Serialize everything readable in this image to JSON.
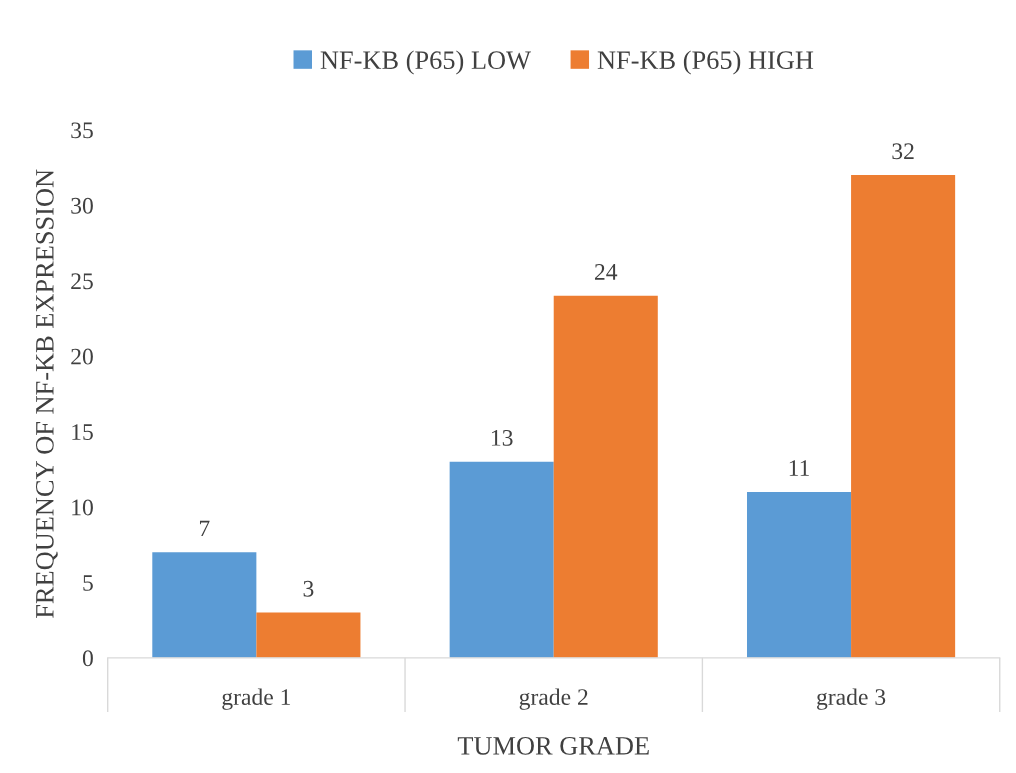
{
  "chart_data": {
    "type": "bar",
    "ylabel": "FREQUENCY OF NF-KB EXPRESSION",
    "xlabel": "TUMOR GRADE",
    "categories": [
      "grade 1",
      "grade 2",
      "grade 3"
    ],
    "series": [
      {
        "name": "NF-KB (P65) LOW",
        "color": "#5b9bd5",
        "values": [
          7,
          13,
          11
        ]
      },
      {
        "name": "NF-KB (P65) HIGH",
        "color": "#ed7d31",
        "values": [
          3,
          24,
          32
        ]
      }
    ],
    "ylim": [
      0,
      35
    ],
    "yticks": [
      0,
      5,
      10,
      15,
      20,
      25,
      30,
      35
    ],
    "grid": false,
    "legend": "top",
    "data_labels": true
  }
}
